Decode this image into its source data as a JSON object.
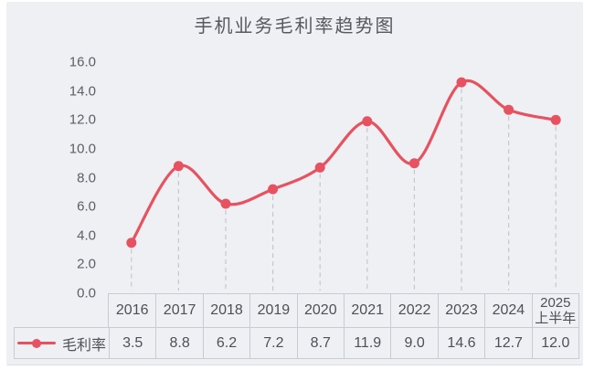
{
  "chart_data": {
    "type": "line",
    "title": "手机业务毛利率趋势图",
    "categories": [
      "2016",
      "2017",
      "2018",
      "2019",
      "2020",
      "2021",
      "2022",
      "2023",
      "2024",
      "2025上半年"
    ],
    "series": [
      {
        "name": "毛利率",
        "values": [
          3.5,
          8.8,
          6.2,
          7.2,
          8.7,
          11.9,
          9.0,
          14.6,
          12.7,
          12.0
        ]
      }
    ],
    "value_labels": [
      "3.5",
      "8.8",
      "6.2",
      "7.2",
      "8.7",
      "11.9",
      "9.0",
      "14.6",
      "12.7",
      "12.0"
    ],
    "xlabel": "",
    "ylabel": "",
    "ylim": [
      0,
      16
    ],
    "y_tick_step": 2,
    "y_ticks": [
      "16.0",
      "14.0",
      "12.0",
      "10.0",
      "8.0",
      "6.0",
      "4.0",
      "2.0",
      "0.0"
    ],
    "grid": false,
    "smooth": true,
    "legend_position": "bottom-left"
  },
  "legend": {
    "label": "毛利率"
  },
  "colors": {
    "line": "#e65260",
    "point": "#e65260",
    "drop_line": "#c3c7cf",
    "panel_bg": "#eff0f4",
    "table_border": "#c7cbd2",
    "text": "#4d5156",
    "axis_text": "#5b5f66",
    "title_text": "#56595f"
  }
}
